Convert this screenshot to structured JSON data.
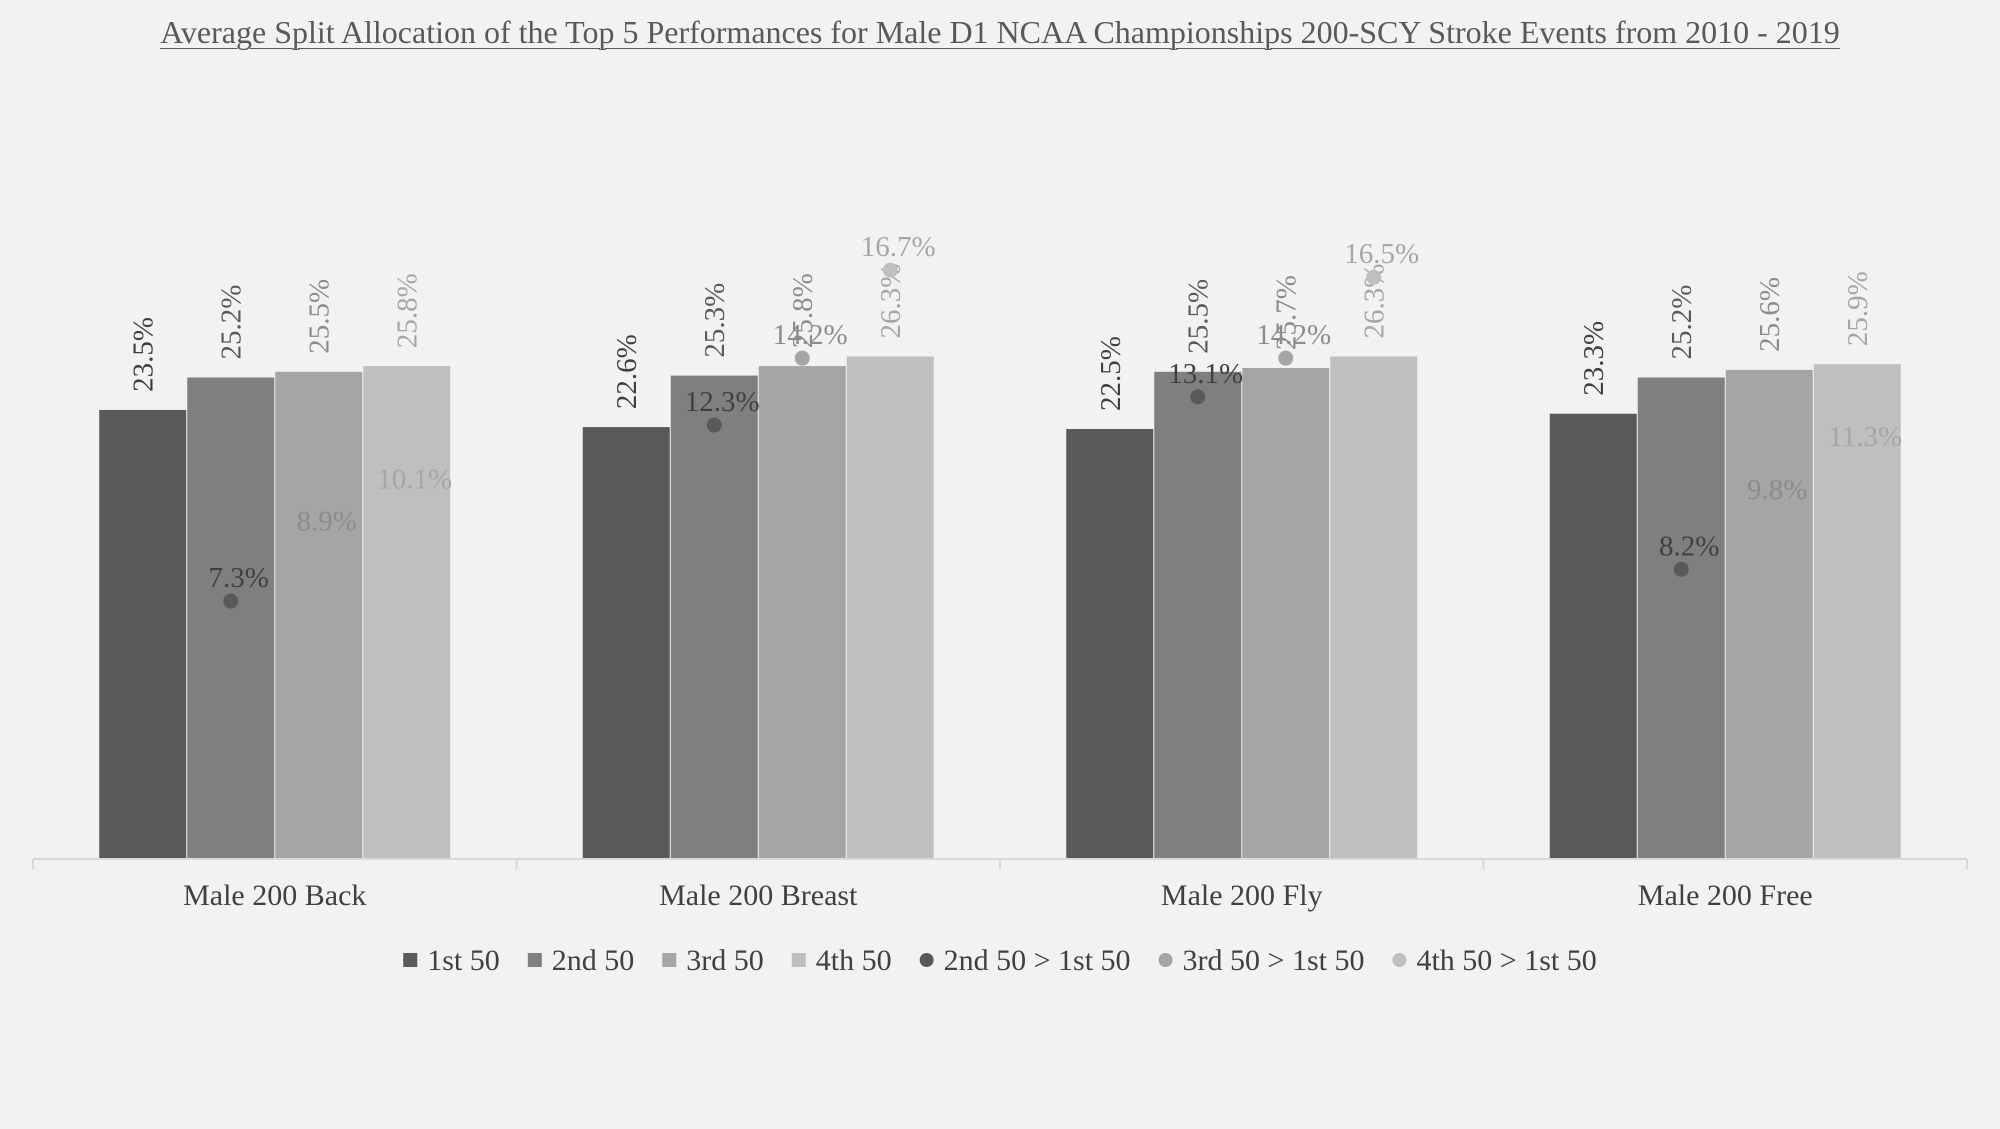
{
  "chart_data": {
    "type": "bar",
    "title": "Average Split Allocation of the Top 5 Performances for Male D1 NCAA Championships 200-SCY Stroke Events from 2010 - 2019",
    "categories": [
      "Male 200 Back",
      "Male 200 Breast",
      "Male 200 Fly",
      "Male 200 Free"
    ],
    "series": [
      {
        "name": "1st 50",
        "kind": "bar",
        "color": "#595959",
        "values": [
          23.5,
          22.6,
          22.5,
          23.3
        ],
        "labels": [
          "23.5%",
          "22.6%",
          "22.5%",
          "23.3%"
        ]
      },
      {
        "name": "2nd 50",
        "kind": "bar",
        "color": "#7f7f7f",
        "values": [
          25.2,
          25.3,
          25.5,
          25.2
        ],
        "labels": [
          "25.2%",
          "25.3%",
          "25.5%",
          "25.2%"
        ]
      },
      {
        "name": "3rd 50",
        "kind": "bar",
        "color": "#a5a5a5",
        "values": [
          25.5,
          25.8,
          25.7,
          25.6
        ],
        "labels": [
          "25.5%",
          "25.8%",
          "25.7%",
          "25.6%"
        ]
      },
      {
        "name": "4th 50",
        "kind": "bar",
        "color": "#bfbfbf",
        "values": [
          25.8,
          26.3,
          26.3,
          25.9
        ],
        "labels": [
          "25.8%",
          "26.3%",
          "26.3%",
          "25.9%"
        ]
      },
      {
        "name": "2nd 50 > 1st 50",
        "kind": "dot",
        "color": "#595959",
        "values": [
          7.3,
          12.3,
          13.1,
          8.2
        ],
        "labels": [
          "7.3%",
          "12.3%",
          "13.1%",
          "8.2%"
        ]
      },
      {
        "name": "3rd 50 > 1st 50",
        "kind": "dot",
        "color": "#a5a5a5",
        "values": [
          8.9,
          14.2,
          14.2,
          9.8
        ],
        "labels": [
          "8.9%",
          "14.2%",
          "14.2%",
          "9.8%"
        ]
      },
      {
        "name": "4th 50 > 1st 50",
        "kind": "dot",
        "color": "#bfbfbf",
        "values": [
          10.1,
          16.7,
          16.5,
          11.3
        ],
        "labels": [
          "10.1%",
          "16.7%",
          "16.5%",
          "11.3%"
        ]
      }
    ],
    "bar_axis_range": [
      0,
      30
    ],
    "dot_axis_range": [
      0,
      30
    ],
    "legend_position": "bottom",
    "grid": false,
    "label_colors": {
      "1st 50": "#404040",
      "2nd 50": "#595959",
      "3rd 50": "#8c8c8c",
      "4th 50": "#a6a6a6",
      "2nd 50 > 1st 50": "#404040",
      "3rd 50 > 1st 50": "#8c8c8c",
      "4th 50 > 1st 50": "#a6a6a6"
    },
    "axis_color": "#d9d9d9",
    "background": "#f2f2f2"
  }
}
